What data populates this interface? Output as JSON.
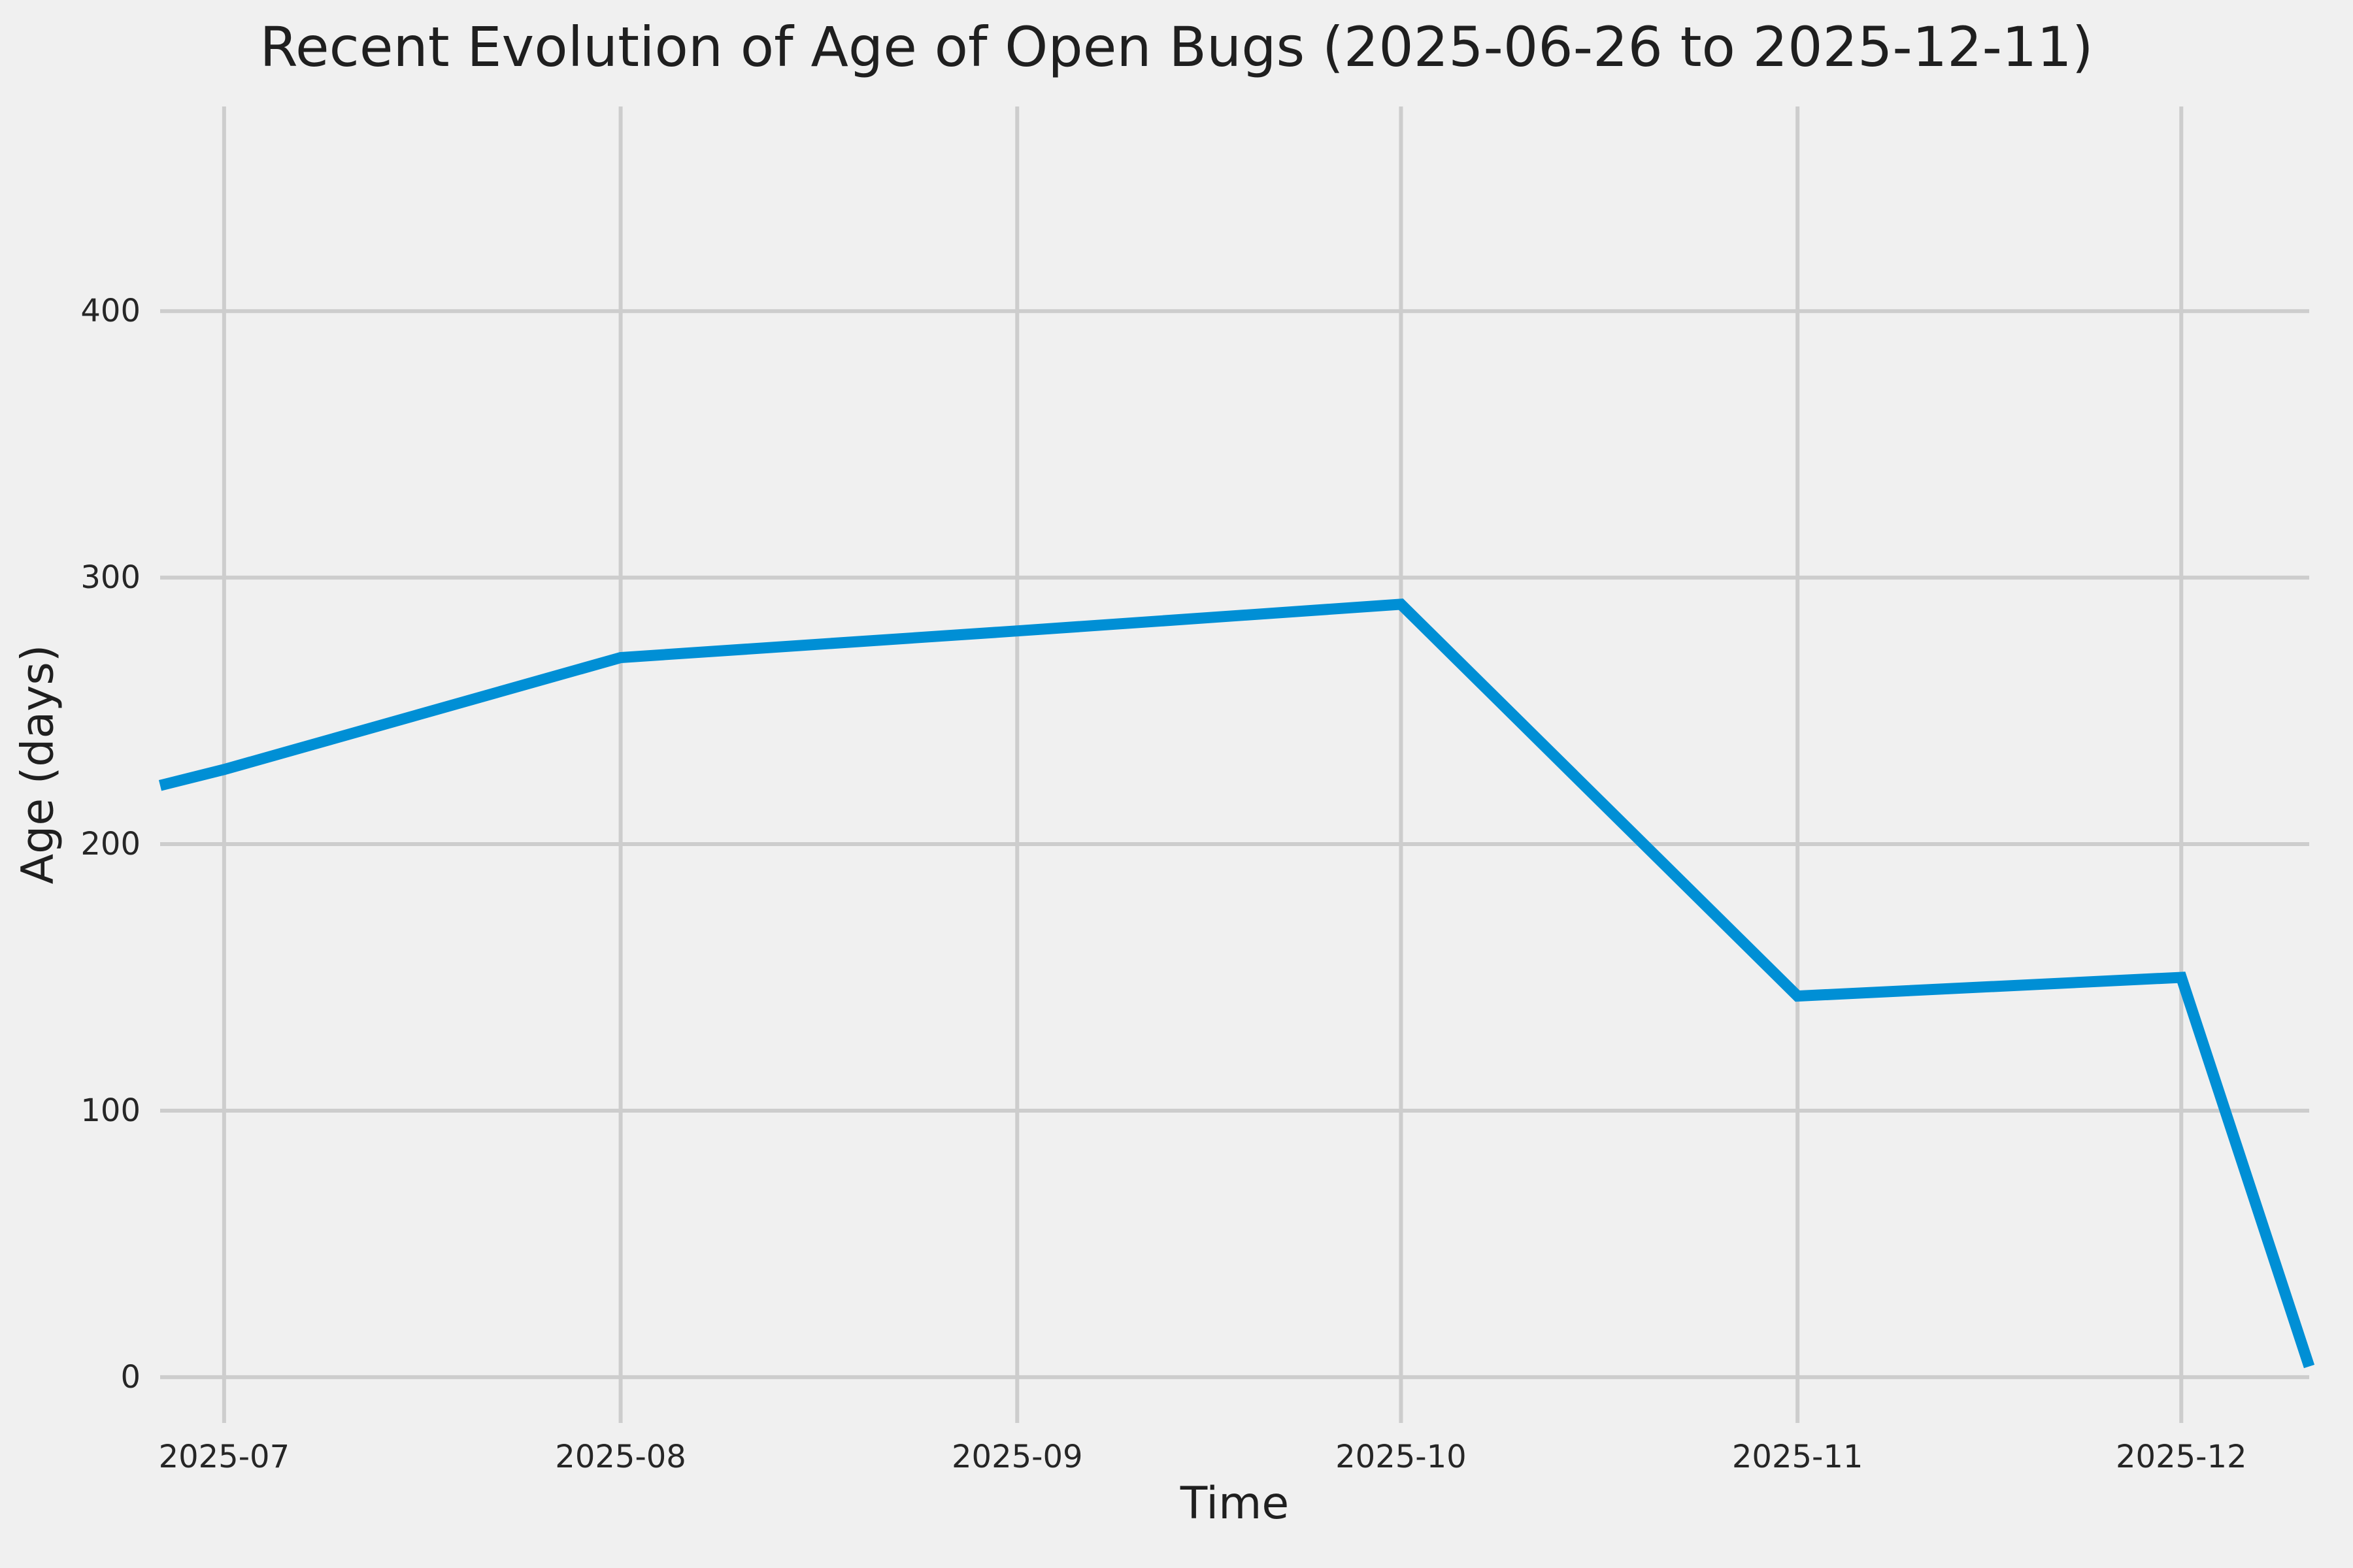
{
  "chart_data": {
    "type": "line",
    "title": "Recent Evolution of Age of Open Bugs (2025-06-26 to 2025-12-11)",
    "xlabel": "Time",
    "ylabel": "Age (days)",
    "date_range": [
      "2025-06-26",
      "2025-12-11"
    ],
    "ylim": [
      -17.2,
      476.8
    ],
    "grid": true,
    "legend_visible": false,
    "colors": {
      "background": "#f0f0f0",
      "grid": "#cdcdcd",
      "line": "#008fd5",
      "text": "#262626"
    },
    "yticks": [
      {
        "value": 0,
        "label": "0"
      },
      {
        "value": 100,
        "label": "100"
      },
      {
        "value": 200,
        "label": "200"
      },
      {
        "value": 300,
        "label": "300"
      },
      {
        "value": 400,
        "label": "400"
      }
    ],
    "xticks": [
      {
        "date": "2025-07-01",
        "label": "2025-07"
      },
      {
        "date": "2025-08-01",
        "label": "2025-08"
      },
      {
        "date": "2025-09-01",
        "label": "2025-09"
      },
      {
        "date": "2025-10-01",
        "label": "2025-10"
      },
      {
        "date": "2025-11-01",
        "label": "2025-11"
      },
      {
        "date": "2025-12-01",
        "label": "2025-12"
      }
    ],
    "series": [
      {
        "name": "age-of-open-bugs",
        "color": "#008fd5",
        "points": [
          {
            "date": "2025-06-26",
            "value": 222
          },
          {
            "date": "2025-07-01",
            "value": 228
          },
          {
            "date": "2025-08-01",
            "value": 270
          },
          {
            "date": "2025-09-01",
            "value": 280
          },
          {
            "date": "2025-10-01",
            "value": 290
          },
          {
            "date": "2025-11-01",
            "value": 143
          },
          {
            "date": "2025-12-01",
            "value": 150
          },
          {
            "date": "2025-12-11",
            "value": 4
          }
        ]
      }
    ]
  }
}
